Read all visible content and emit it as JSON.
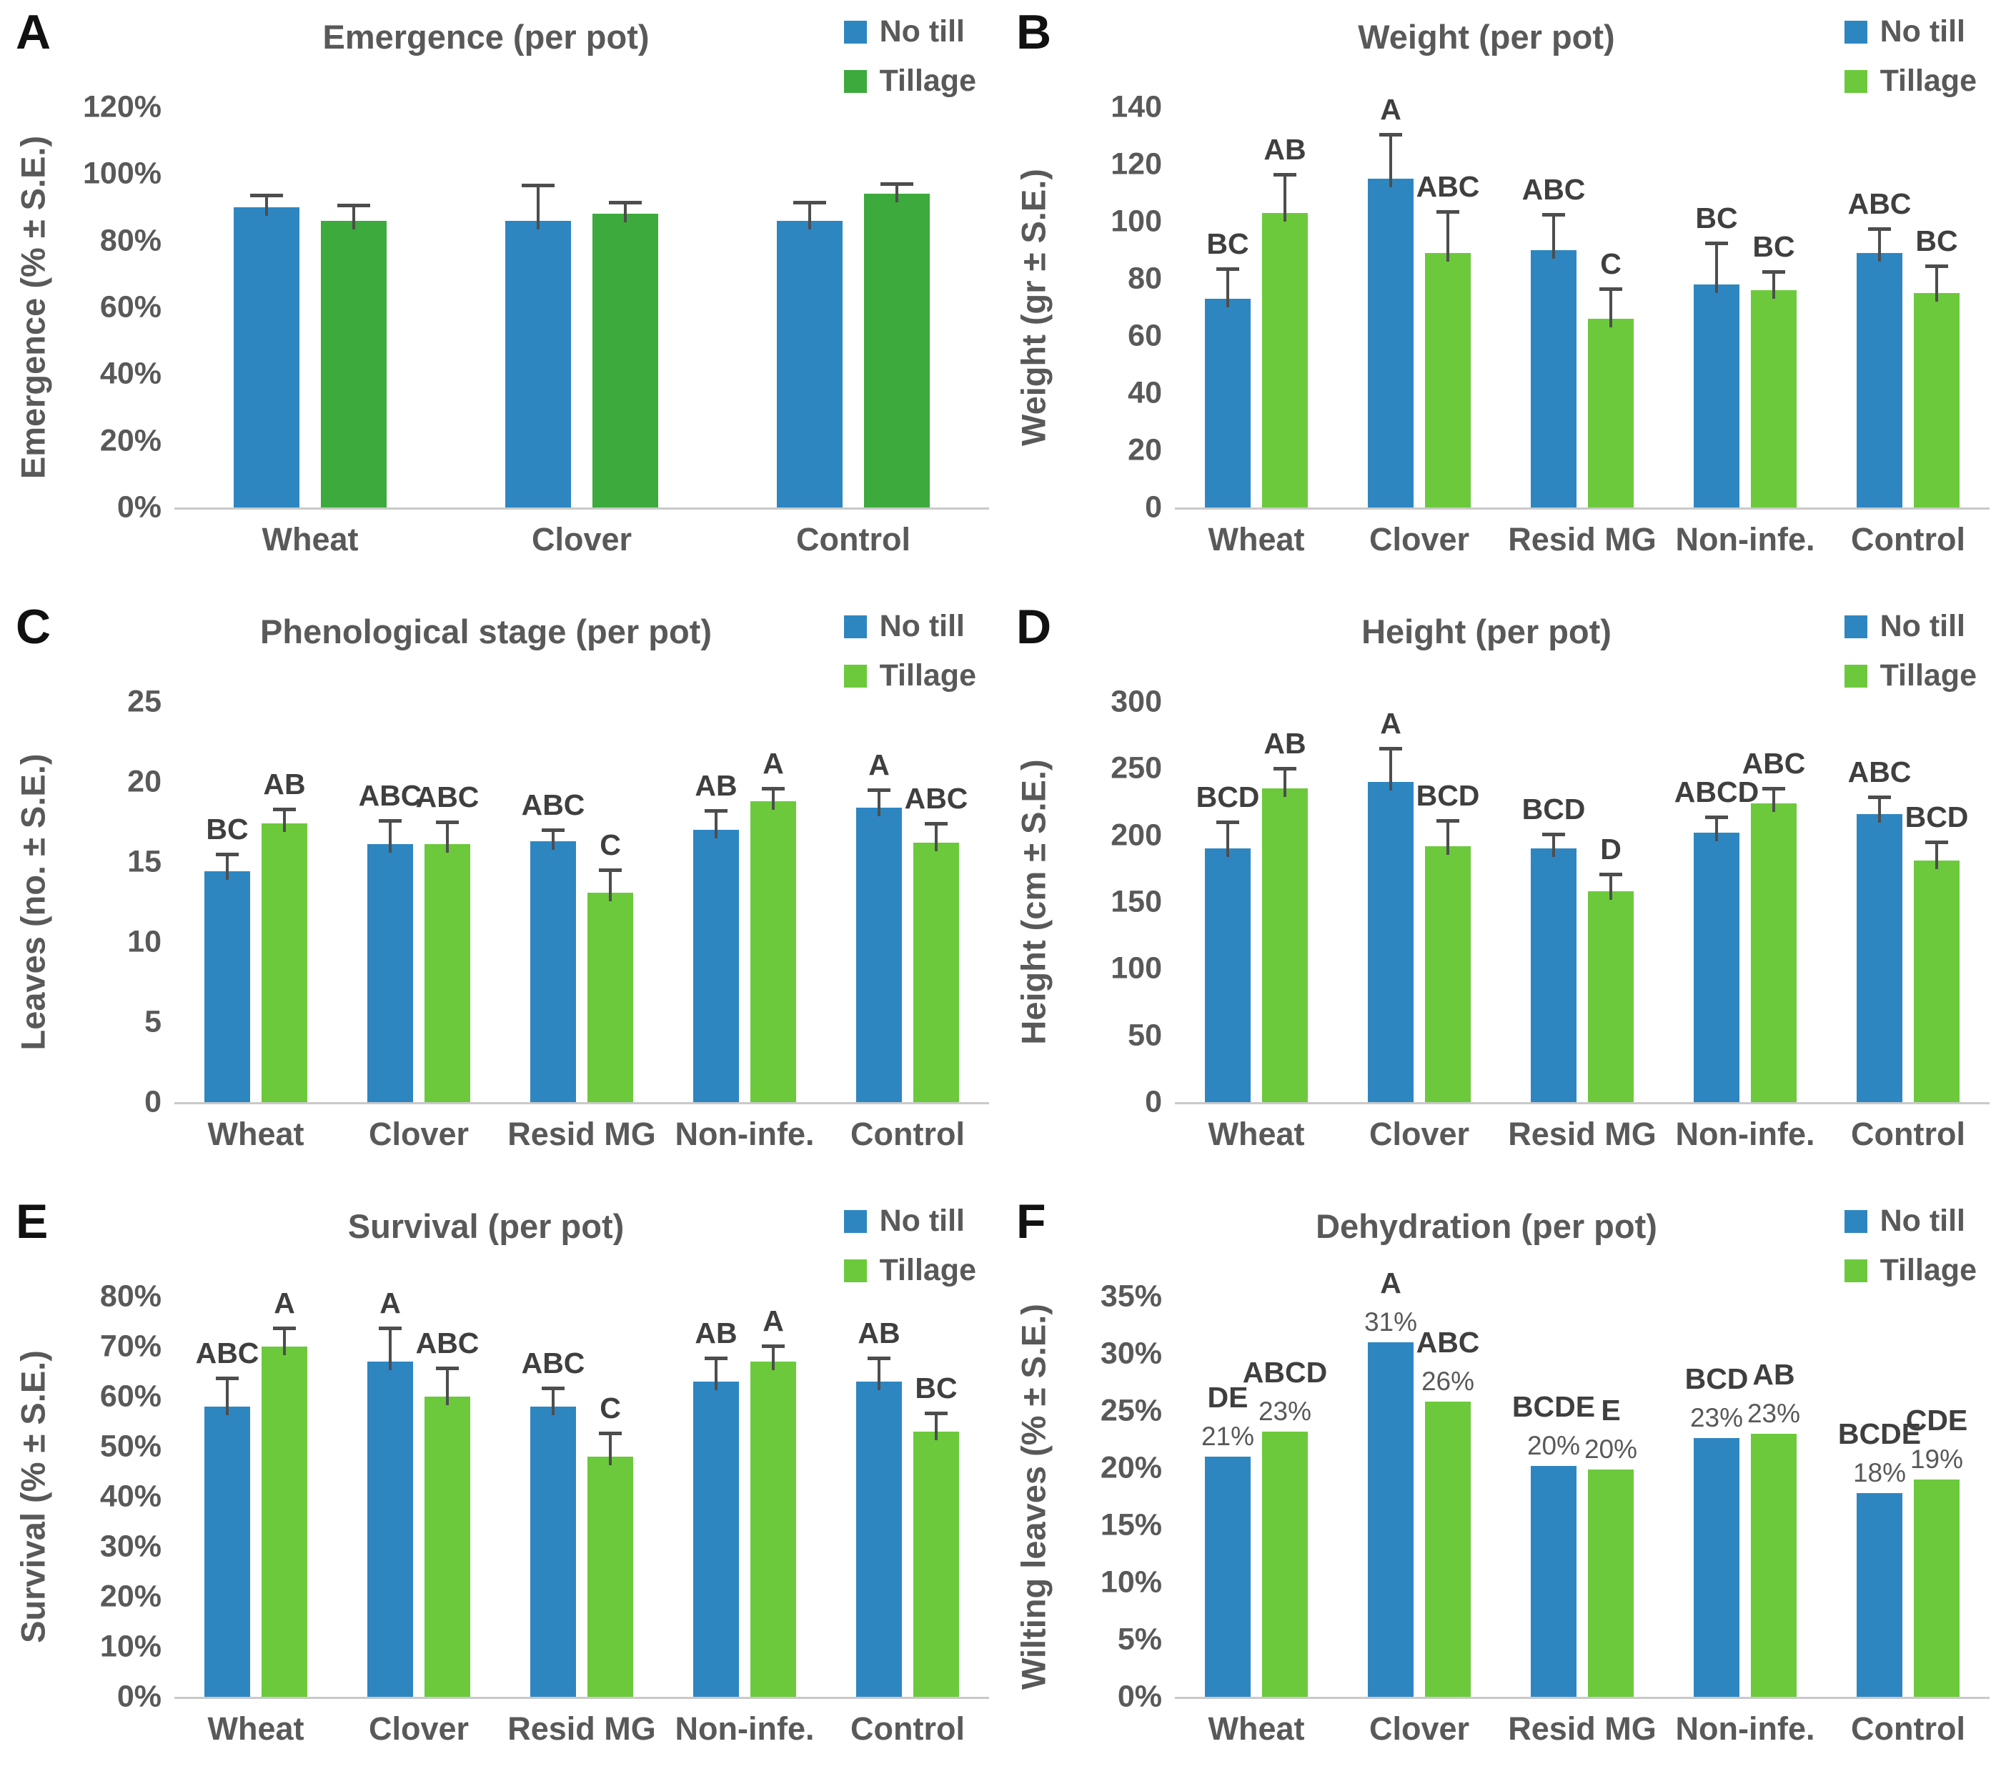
{
  "figure": {
    "legend": {
      "no_till_label": "No till",
      "tillage_label": "Tillage"
    },
    "colors": {
      "no_till_blue": "#2E86C1",
      "tillage_green_dark": "#3CAA3C",
      "tillage_green_light": "#6CC93C",
      "text_gray": "#595959",
      "error_bar_gray": "#4d4d4d",
      "axis_line_gray": "#c9c9c9"
    }
  },
  "chart_data": [
    {
      "panel": "A",
      "type": "bar",
      "title": "Emergence (per pot)",
      "ylabel": "Emergence (% ± S.E.)",
      "xlabel": "",
      "ylim": [
        0,
        120
      ],
      "ytick_step": 20,
      "ytick_format": "percent",
      "grid": false,
      "legend_position": "top-right",
      "categories": [
        "Wheat",
        "Clover",
        "Control"
      ],
      "series": [
        {
          "name": "No till",
          "color": "#2E86C1",
          "values": [
            90,
            86,
            86
          ],
          "errors": [
            4,
            11,
            6
          ],
          "letters": null,
          "value_labels": null
        },
        {
          "name": "Tillage",
          "color": "#3CAA3C",
          "values": [
            86,
            88,
            94
          ],
          "errors": [
            5,
            4,
            3.5
          ],
          "letters": null,
          "value_labels": null
        }
      ]
    },
    {
      "panel": "B",
      "type": "bar",
      "title": "Weight (per pot)",
      "ylabel": "Weight (gr ± S.E.)",
      "xlabel": "",
      "ylim": [
        0,
        140
      ],
      "ytick_step": 20,
      "ytick_format": "plain",
      "grid": false,
      "legend_position": "top-right",
      "categories": [
        "Wheat",
        "Clover",
        "Resid MG",
        "Non-infe.",
        "Control"
      ],
      "series": [
        {
          "name": "No till",
          "color": "#2E86C1",
          "values": [
            73,
            115,
            90,
            78,
            89
          ],
          "errors": [
            11,
            16,
            13,
            15,
            9
          ],
          "letters": [
            "BC",
            "A",
            "ABC",
            "BC",
            "ABC"
          ],
          "value_labels": null
        },
        {
          "name": "Tillage",
          "color": "#6CC93C",
          "values": [
            103,
            89,
            66,
            76,
            75
          ],
          "errors": [
            14,
            15,
            11,
            7,
            10
          ],
          "letters": [
            "AB",
            "ABC",
            "C",
            "BC",
            "BC"
          ],
          "value_labels": null
        }
      ]
    },
    {
      "panel": "C",
      "type": "bar",
      "title": "Phenological stage (per pot)",
      "ylabel": "Leaves (no. ± S.E.)",
      "xlabel": "",
      "ylim": [
        0,
        25
      ],
      "ytick_step": 5,
      "ytick_format": "plain",
      "grid": false,
      "legend_position": "top-right",
      "categories": [
        "Wheat",
        "Clover",
        "Resid MG",
        "Non-infe.",
        "Control"
      ],
      "series": [
        {
          "name": "No till",
          "color": "#2E86C1",
          "values": [
            14.4,
            16.1,
            16.3,
            17.0,
            18.4
          ],
          "errors": [
            1.2,
            1.6,
            0.8,
            1.3,
            1.2
          ],
          "letters": [
            "BC",
            "ABC",
            "ABC",
            "AB",
            "A"
          ],
          "value_labels": null
        },
        {
          "name": "Tillage",
          "color": "#6CC93C",
          "values": [
            17.4,
            16.1,
            13.1,
            18.8,
            16.2
          ],
          "errors": [
            1.0,
            1.5,
            1.5,
            0.9,
            1.3
          ],
          "letters": [
            "AB",
            "ABC",
            "C",
            "A",
            "ABC"
          ],
          "value_labels": null
        }
      ]
    },
    {
      "panel": "D",
      "type": "bar",
      "title": "Height (per pot)",
      "ylabel": "Height (cm ± S.E.)",
      "xlabel": "",
      "ylim": [
        0,
        300
      ],
      "ytick_step": 50,
      "ytick_format": "plain",
      "grid": false,
      "legend_position": "top-right",
      "categories": [
        "Wheat",
        "Clover",
        "Resid MG",
        "Non-infe.",
        "Control"
      ],
      "series": [
        {
          "name": "No till",
          "color": "#2E86C1",
          "values": [
            190,
            240,
            190,
            202,
            216
          ],
          "errors": [
            21,
            26,
            12,
            13,
            14
          ],
          "letters": [
            "BCD",
            "A",
            "BCD",
            "ABCD",
            "ABC"
          ],
          "value_labels": null
        },
        {
          "name": "Tillage",
          "color": "#6CC93C",
          "values": [
            235,
            192,
            158,
            224,
            181
          ],
          "errors": [
            16,
            20,
            14,
            12,
            15
          ],
          "letters": [
            "AB",
            "BCD",
            "D",
            "ABC",
            "BCD"
          ],
          "value_labels": null
        }
      ]
    },
    {
      "panel": "E",
      "type": "bar",
      "title": "Survival (per pot)",
      "ylabel": "Survival (% ± S.E.)",
      "xlabel": "",
      "ylim": [
        0,
        80
      ],
      "ytick_step": 10,
      "ytick_format": "percent",
      "grid": false,
      "legend_position": "top-right",
      "categories": [
        "Wheat",
        "Clover",
        "Resid MG",
        "Non-infe.",
        "Control"
      ],
      "series": [
        {
          "name": "No till",
          "color": "#2E86C1",
          "values": [
            58,
            67,
            58,
            63,
            63
          ],
          "errors": [
            6,
            7,
            4,
            5,
            5
          ],
          "letters": [
            "ABC",
            "A",
            "ABC",
            "AB",
            "AB"
          ],
          "value_labels": null
        },
        {
          "name": "Tillage",
          "color": "#6CC93C",
          "values": [
            70,
            60,
            48,
            67,
            53
          ],
          "errors": [
            4,
            6,
            5,
            3.5,
            4
          ],
          "letters": [
            "A",
            "ABC",
            "C",
            "A",
            "BC"
          ],
          "value_labels": null
        }
      ]
    },
    {
      "panel": "F",
      "type": "bar",
      "title": "Dehydration (per pot)",
      "ylabel": "Wilting leaves  (% ± S.E.)",
      "xlabel": "",
      "ylim": [
        0,
        35
      ],
      "ytick_step": 5,
      "ytick_format": "percent",
      "grid": false,
      "legend_position": "top-right",
      "categories": [
        "Wheat",
        "Clover",
        "Resid MG",
        "Non-infe.",
        "Control"
      ],
      "series": [
        {
          "name": "No till",
          "color": "#2E86C1",
          "values": [
            21,
            31,
            20.2,
            22.6,
            17.8
          ],
          "errors": null,
          "letters": [
            "DE",
            "A",
            "BCDE",
            "BCD",
            "BCDE"
          ],
          "value_labels": [
            "21%",
            "31%",
            "20%",
            "23%",
            "18%"
          ]
        },
        {
          "name": "Tillage",
          "color": "#6CC93C",
          "values": [
            23.2,
            25.8,
            19.9,
            23,
            19
          ],
          "errors": null,
          "letters": [
            "ABCD",
            "ABC",
            "E",
            "AB",
            "CDE"
          ],
          "value_labels": [
            "23%",
            "26%",
            "20%",
            "23%",
            "19%"
          ]
        }
      ]
    }
  ]
}
